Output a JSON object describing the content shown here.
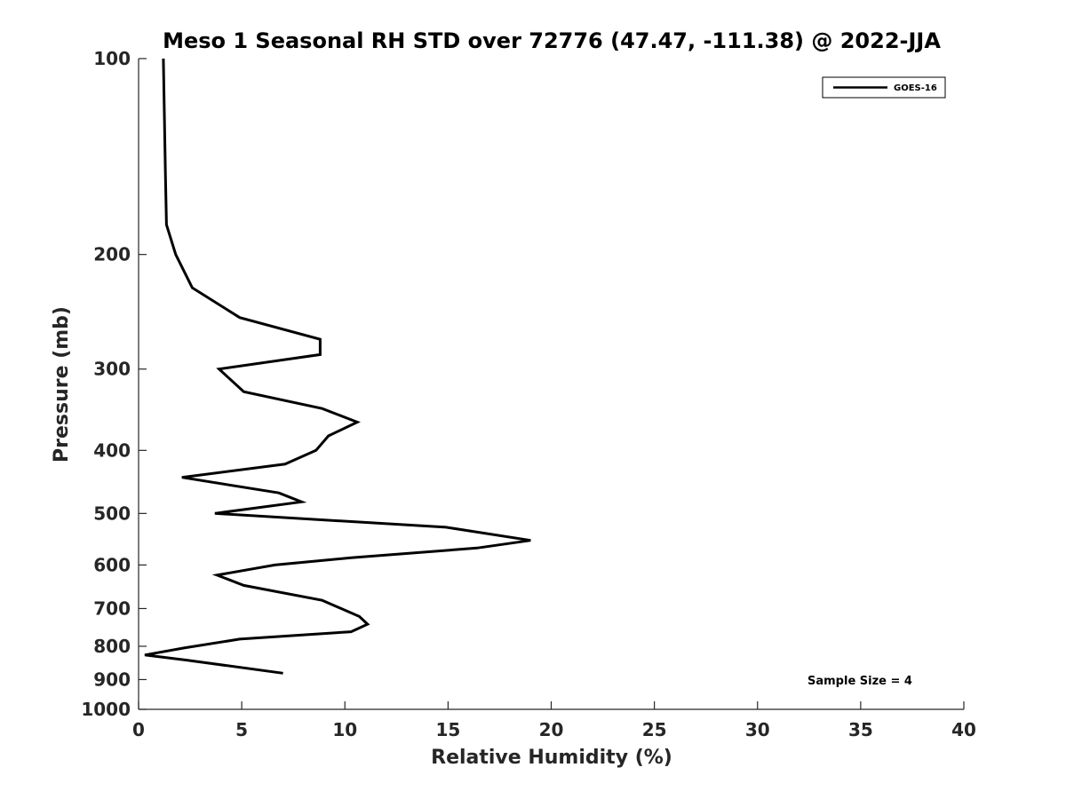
{
  "chart_data": {
    "type": "line",
    "title": "Meso 1 Seasonal RH STD over 72776 (47.47, -111.38) @ 2022-JJA",
    "xlabel": "Relative Humidity (%)",
    "ylabel": "Pressure (mb)",
    "xlim": [
      0,
      40
    ],
    "ylim": [
      100,
      1000
    ],
    "y_scale": "log",
    "y_reversed": true,
    "x_ticks": [
      "0",
      "5",
      "10",
      "15",
      "20",
      "25",
      "30",
      "35",
      "40"
    ],
    "y_ticks": [
      "100",
      "200",
      "300",
      "400",
      "500",
      "600",
      "700",
      "800",
      "900",
      "1000"
    ],
    "grid": false,
    "legend_position": "top-right",
    "series": [
      {
        "name": "GOES-16",
        "color": "#000000",
        "points": [
          [
            1.2,
            100
          ],
          [
            1.3,
            150
          ],
          [
            1.35,
            180
          ],
          [
            1.8,
            200
          ],
          [
            2.6,
            225
          ],
          [
            4.9,
            250
          ],
          [
            8.8,
            270
          ],
          [
            8.8,
            285
          ],
          [
            3.9,
            300
          ],
          [
            5.1,
            325
          ],
          [
            8.9,
            345
          ],
          [
            10.6,
            362
          ],
          [
            9.2,
            380
          ],
          [
            8.6,
            400
          ],
          [
            7.1,
            420
          ],
          [
            2.1,
            440
          ],
          [
            6.8,
            465
          ],
          [
            7.9,
            480
          ],
          [
            3.7,
            500
          ],
          [
            14.9,
            525
          ],
          [
            19.0,
            550
          ],
          [
            16.4,
            565
          ],
          [
            10.3,
            585
          ],
          [
            6.6,
            600
          ],
          [
            3.8,
            622
          ],
          [
            5.1,
            645
          ],
          [
            8.9,
            680
          ],
          [
            10.7,
            720
          ],
          [
            11.1,
            740
          ],
          [
            10.3,
            760
          ],
          [
            4.9,
            780
          ],
          [
            2.2,
            805
          ],
          [
            0.3,
            825
          ],
          [
            2.3,
            840
          ],
          [
            7.0,
            880
          ]
        ]
      }
    ],
    "annotation": "Sample Size = 4"
  }
}
